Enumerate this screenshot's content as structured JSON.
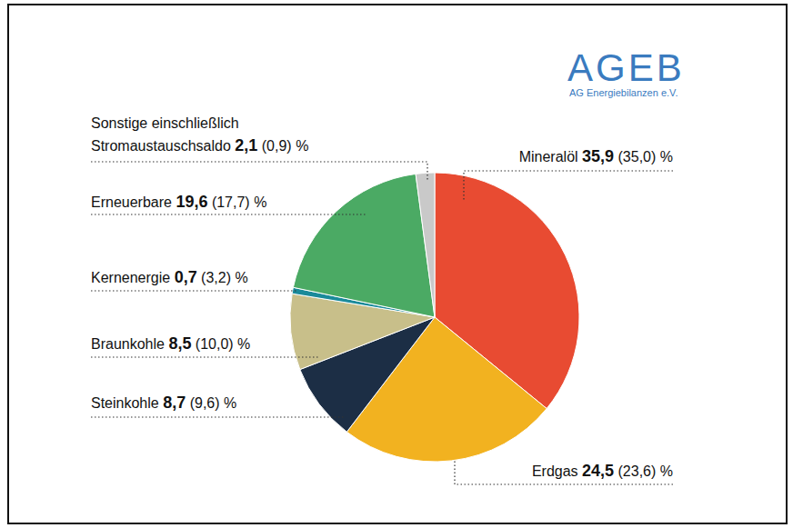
{
  "chart_data": {
    "type": "pie",
    "categories": [
      "Mineralöl",
      "Erdgas",
      "Steinkohle",
      "Braunkohle",
      "Kernenergie",
      "Erneuerbare",
      "Sonstige einschließlich Stromaustauschsaldo"
    ],
    "values": [
      35.9,
      24.5,
      8.7,
      8.5,
      0.7,
      19.6,
      2.1
    ],
    "value_labels": [
      "35,9",
      "24,5",
      "8,7",
      "8,5",
      "0,7",
      "19,6",
      "2,1"
    ],
    "previous_values": [
      35.0,
      23.6,
      9.6,
      10.0,
      3.2,
      17.7,
      0.9
    ],
    "previous_value_labels": [
      "(35,0)",
      "(23,6)",
      "(9,6)",
      "(10,0)",
      "(3,2)",
      "(17,7)",
      "(0,9)"
    ],
    "unit": "%",
    "colors": [
      "#e84b32",
      "#f2b220",
      "#1c2e45",
      "#c8bf8a",
      "#1a8a9a",
      "#4baa64",
      "#c9c9c9"
    ],
    "data_labels": true,
    "annotations": [
      "AGEB",
      "AG Energiebilanzen e.V."
    ]
  }
}
